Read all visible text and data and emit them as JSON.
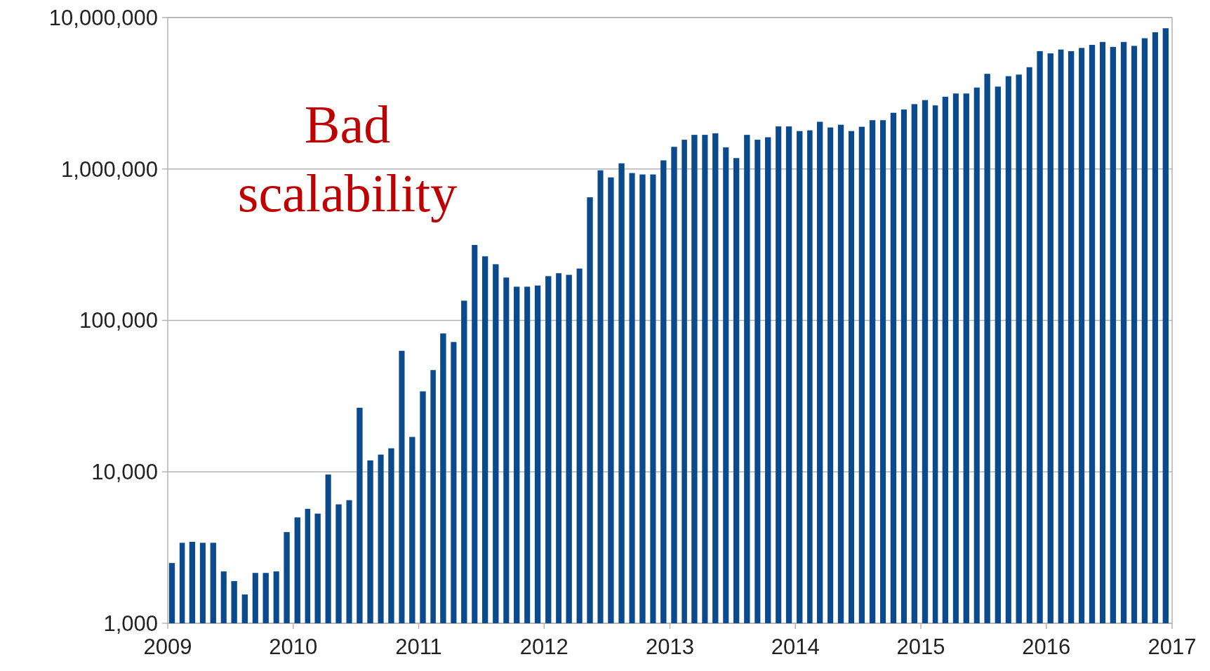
{
  "chart_data": {
    "type": "bar",
    "annotations": [
      "Bad scalability"
    ],
    "x": [
      "2009-01",
      "2009-02",
      "2009-03",
      "2009-04",
      "2009-05",
      "2009-06",
      "2009-07",
      "2009-08",
      "2009-09",
      "2009-10",
      "2009-11",
      "2009-12",
      "2010-01",
      "2010-02",
      "2010-03",
      "2010-04",
      "2010-05",
      "2010-06",
      "2010-07",
      "2010-08",
      "2010-09",
      "2010-10",
      "2010-11",
      "2010-12",
      "2011-01",
      "2011-02",
      "2011-03",
      "2011-04",
      "2011-05",
      "2011-06",
      "2011-07",
      "2011-08",
      "2011-09",
      "2011-10",
      "2011-11",
      "2011-12",
      "2012-01",
      "2012-02",
      "2012-03",
      "2012-04",
      "2012-05",
      "2012-06",
      "2012-07",
      "2012-08",
      "2012-09",
      "2012-10",
      "2012-11",
      "2012-12",
      "2013-01",
      "2013-02",
      "2013-03",
      "2013-04",
      "2013-05",
      "2013-06",
      "2013-07",
      "2013-08",
      "2013-09",
      "2013-10",
      "2013-11",
      "2013-12",
      "2014-01",
      "2014-02",
      "2014-03",
      "2014-04",
      "2014-05",
      "2014-06",
      "2014-07",
      "2014-08",
      "2014-09",
      "2014-10",
      "2014-11",
      "2014-12",
      "2015-01",
      "2015-02",
      "2015-03",
      "2015-04",
      "2015-05",
      "2015-06",
      "2015-07",
      "2015-08",
      "2015-09",
      "2015-10",
      "2015-11",
      "2015-12",
      "2016-01",
      "2016-02",
      "2016-03",
      "2016-04",
      "2016-05",
      "2016-06",
      "2016-07",
      "2016-08",
      "2016-09",
      "2016-10",
      "2016-11",
      "2016-12"
    ],
    "values": [
      2500,
      3400,
      3450,
      3400,
      3400,
      2200,
      1900,
      1550,
      2150,
      2150,
      2200,
      4000,
      5000,
      5700,
      5300,
      9600,
      6100,
      6500,
      26500,
      11900,
      13000,
      14300,
      63000,
      17000,
      34000,
      47000,
      82000,
      72000,
      135000,
      315000,
      265000,
      235000,
      192000,
      167000,
      167000,
      170000,
      196000,
      205000,
      200000,
      220000,
      650000,
      980000,
      880000,
      1090000,
      940000,
      920000,
      920000,
      1140000,
      1400000,
      1560000,
      1680000,
      1680000,
      1720000,
      1390000,
      1180000,
      1680000,
      1560000,
      1620000,
      1910000,
      1910000,
      1780000,
      1800000,
      2050000,
      1880000,
      1960000,
      1780000,
      1900000,
      2100000,
      2100000,
      2350000,
      2470000,
      2680000,
      2850000,
      2630000,
      3000000,
      3150000,
      3150000,
      3450000,
      4250000,
      3500000,
      4100000,
      4200000,
      4700000,
      6000000,
      5800000,
      6150000,
      6000000,
      6300000,
      6600000,
      6900000,
      6400000,
      6900000,
      6500000,
      7300000,
      8000000,
      8500000
    ],
    "color": "#0b4a8c",
    "log": true,
    "grid": "y",
    "ylim": [
      1000,
      10000000
    ],
    "yticks": [
      {
        "value": 1000,
        "label": "1,000"
      },
      {
        "value": 10000,
        "label": "10,000"
      },
      {
        "value": 100000,
        "label": "100,000"
      },
      {
        "value": 1000000,
        "label": "1,000,000"
      },
      {
        "value": 10000000,
        "label": "10,000,000"
      }
    ],
    "xlim": [
      "2009-01-01",
      "2017-01-01"
    ],
    "xticks": [
      "2009",
      "2010",
      "2011",
      "2012",
      "2013",
      "2014",
      "2015",
      "2016",
      "2017"
    ]
  }
}
